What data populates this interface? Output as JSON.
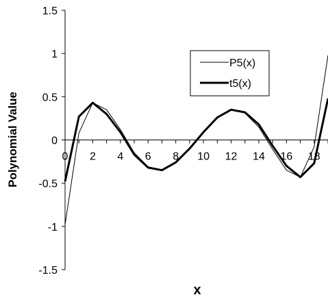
{
  "chart_data": {
    "type": "line",
    "title": "",
    "xlabel": "x",
    "ylabel": "Polynomial Value",
    "xlim": [
      0,
      19
    ],
    "ylim": [
      -1.5,
      1.5
    ],
    "x_ticks": [
      0,
      2,
      4,
      6,
      8,
      10,
      12,
      14,
      16,
      18
    ],
    "x_tick_labels": [
      "0",
      "2",
      "4",
      "6",
      "8",
      "10",
      "12",
      "14",
      "16",
      "18"
    ],
    "y_ticks": [
      1.5,
      1,
      0.5,
      0,
      -0.5,
      -1,
      -1.5
    ],
    "y_tick_labels": [
      "1.5",
      "1",
      "0.5",
      "0",
      "-0.5",
      "-1",
      "-1.5"
    ],
    "legend_position": "top-right",
    "grid": false,
    "x": [
      0,
      1,
      2,
      3,
      4,
      5,
      6,
      7,
      8,
      9,
      10,
      11,
      12,
      13,
      14,
      15,
      16,
      17,
      18,
      19
    ],
    "series": [
      {
        "name": "P5(x)",
        "color": "#000000",
        "line_style": "thin",
        "values": [
          -0.98,
          0.08,
          0.43,
          0.35,
          0.12,
          -0.15,
          -0.31,
          -0.35,
          -0.26,
          -0.1,
          0.09,
          0.26,
          0.35,
          0.31,
          0.15,
          -0.11,
          -0.35,
          -0.43,
          -0.08,
          0.98
        ]
      },
      {
        "name": "t5(x)",
        "color": "#000000",
        "line_style": "thick",
        "values": [
          -0.48,
          0.27,
          0.43,
          0.3,
          0.09,
          -0.17,
          -0.32,
          -0.35,
          -0.26,
          -0.1,
          0.09,
          0.26,
          0.35,
          0.32,
          0.18,
          -0.07,
          -0.3,
          -0.43,
          -0.27,
          0.48
        ]
      }
    ]
  }
}
